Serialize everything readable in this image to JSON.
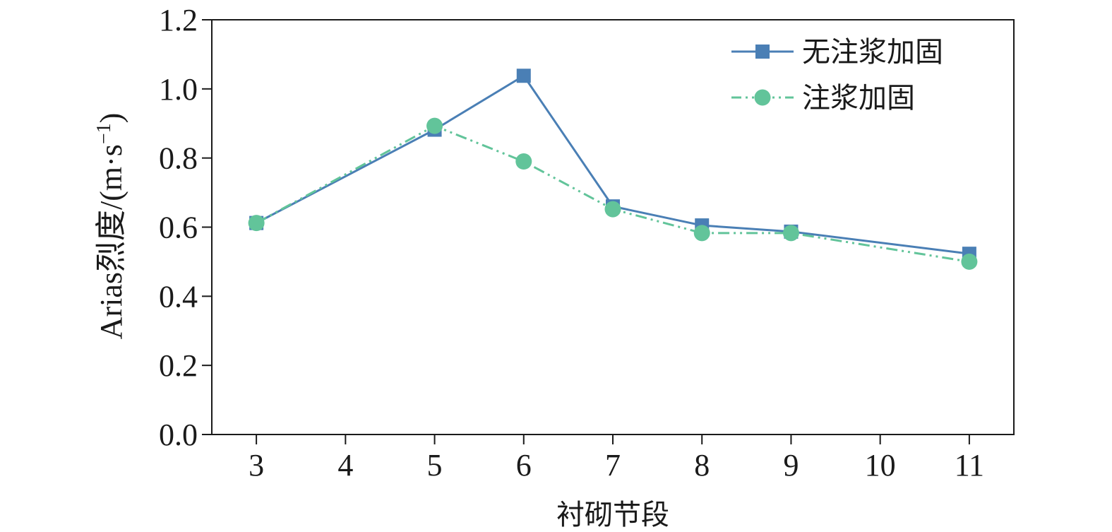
{
  "chart_data": {
    "type": "line",
    "title": "",
    "xlabel": "衬砌节段",
    "ylabel": {
      "main": "Arias烈度/(m·s",
      "superscript": "−1",
      "close": ")"
    },
    "categories": [
      "3",
      "4",
      "5",
      "6",
      "7",
      "8",
      "9",
      "10",
      "11"
    ],
    "ylim": [
      0,
      1.2
    ],
    "yticks": [
      "0.0",
      "0.2",
      "0.4",
      "0.6",
      "0.8",
      "1.0",
      "1.2"
    ],
    "grid": false,
    "legend_position": "top-right",
    "series": [
      {
        "name": "无注浆加固",
        "x": [
          3,
          5,
          6,
          7,
          8,
          9,
          11
        ],
        "values": [
          0.612,
          0.882,
          1.038,
          0.66,
          0.605,
          0.587,
          0.523
        ],
        "color": "#4a7fb5",
        "marker": "square",
        "line_style": "solid"
      },
      {
        "name": "注浆加固",
        "x": [
          3,
          5,
          6,
          7,
          8,
          9,
          11
        ],
        "values": [
          0.612,
          0.893,
          0.79,
          0.652,
          0.583,
          0.583,
          0.5
        ],
        "color": "#62c49a",
        "marker": "circle",
        "line_style": "dash-dot-dot"
      }
    ]
  }
}
